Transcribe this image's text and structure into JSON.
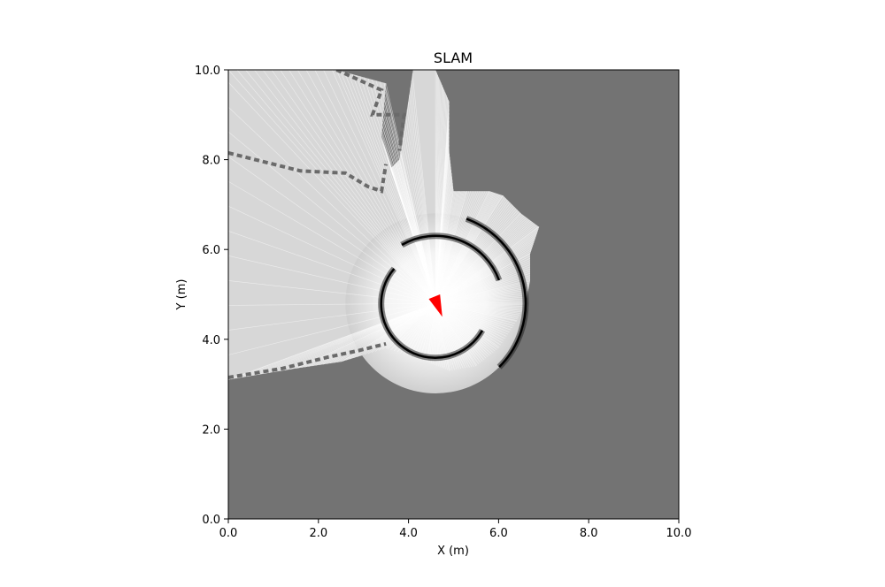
{
  "chart_data": {
    "type": "heatmap",
    "title": "SLAM",
    "xlabel": "X (m)",
    "ylabel": "Y (m)",
    "xlim": [
      0.0,
      10.0
    ],
    "ylim": [
      0.0,
      10.0
    ],
    "x_ticks": [
      0.0,
      2.0,
      4.0,
      6.0,
      8.0,
      10.0
    ],
    "y_ticks": [
      0.0,
      2.0,
      4.0,
      6.0,
      8.0,
      10.0
    ],
    "x_tick_labels": [
      "0.0",
      "2.0",
      "4.0",
      "6.0",
      "8.0",
      "10.0"
    ],
    "y_tick_labels": [
      "0.0",
      "2.0",
      "4.0",
      "6.0",
      "8.0",
      "10.0"
    ],
    "grid": false,
    "colormap": "grayscale",
    "unknown_color": "#737373",
    "robot": {
      "x": 4.6,
      "y": 4.8,
      "color": "#ff0000",
      "tip": [
        4.45,
        4.9
      ],
      "base": [
        [
          4.7,
          5.0
        ],
        [
          4.75,
          4.5
        ]
      ]
    },
    "scan_center": [
      4.6,
      4.8
    ],
    "free_space_boundary": [
      [
        4.6,
        10.0
      ],
      [
        4.9,
        9.3
      ],
      [
        4.9,
        8.2
      ],
      [
        5.0,
        7.3
      ],
      [
        5.3,
        7.3
      ],
      [
        5.8,
        7.3
      ],
      [
        6.1,
        7.2
      ],
      [
        6.5,
        6.8
      ],
      [
        6.9,
        6.5
      ],
      [
        6.7,
        5.9
      ],
      [
        6.7,
        5.3
      ],
      [
        6.6,
        4.8
      ],
      [
        6.4,
        4.4
      ],
      [
        6.0,
        3.8
      ],
      [
        5.5,
        3.4
      ],
      [
        4.9,
        3.3
      ],
      [
        4.4,
        3.5
      ],
      [
        3.5,
        3.8
      ],
      [
        2.5,
        3.5
      ],
      [
        1.5,
        3.35
      ],
      [
        0.0,
        3.1
      ],
      [
        0.0,
        10.0
      ],
      [
        2.4,
        10.0
      ],
      [
        3.5,
        9.7
      ],
      [
        3.4,
        8.5
      ],
      [
        3.6,
        7.8
      ],
      [
        3.8,
        8.0
      ],
      [
        4.1,
        10.0
      ]
    ],
    "obstacle_arcs": [
      {
        "radius": 1.2,
        "start_deg": 140,
        "end_deg": 330
      },
      {
        "radius": 1.5,
        "start_deg": 20,
        "end_deg": 120
      },
      {
        "radius": 2.0,
        "start_deg": -45,
        "end_deg": 70
      }
    ],
    "wall_segments": [
      [
        [
          0.0,
          8.15
        ],
        [
          1.6,
          7.75
        ],
        [
          2.6,
          7.7
        ],
        [
          3.1,
          7.4
        ],
        [
          3.4,
          7.3
        ],
        [
          3.5,
          7.9
        ]
      ],
      [
        [
          2.4,
          10.0
        ],
        [
          3.4,
          9.55
        ],
        [
          3.2,
          9.0
        ],
        [
          3.9,
          9.0
        ],
        [
          3.8,
          8.2
        ]
      ],
      [
        [
          0.0,
          3.15
        ],
        [
          1.2,
          3.35
        ],
        [
          2.2,
          3.6
        ],
        [
          2.9,
          3.75
        ],
        [
          3.5,
          3.9
        ]
      ]
    ]
  }
}
